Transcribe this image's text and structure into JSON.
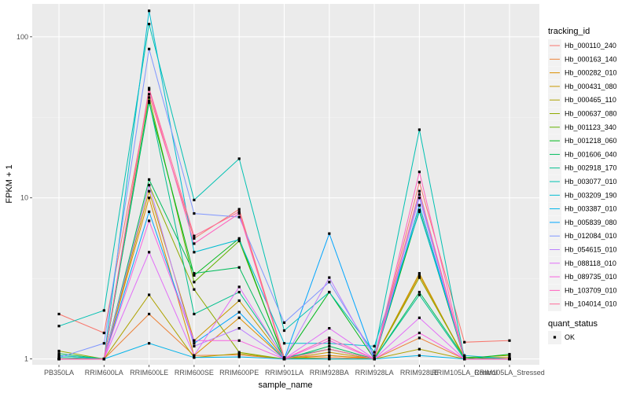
{
  "chart_data": {
    "type": "line",
    "xlabel": "sample_name",
    "ylabel": "FPKM + 1",
    "y_scale": "log10",
    "ylim": [
      0.92,
      160
    ],
    "y_ticks": [
      {
        "value": 1,
        "label": "1"
      },
      {
        "value": 10,
        "label": "10"
      },
      {
        "value": 100,
        "label": "100"
      }
    ],
    "categories": [
      "PB350LA",
      "RRIM600LA",
      "RRIM600LE",
      "RRIM600SE",
      "RRIM600PE",
      "RRIM901LA",
      "RRIM928BA",
      "RRIM928LA",
      "RRIM928LE",
      "RRIM105LA_Control",
      "RRIM105LA_Stressed"
    ],
    "legend": {
      "title": "tracking_id",
      "position": "right",
      "shape_title": "quant_status",
      "shape_items": [
        "OK"
      ]
    },
    "point_color": "#000000",
    "series": [
      {
        "name": "Hb_000110_240",
        "color": "#F8766D",
        "values": [
          1.9,
          1.45,
          44,
          5.6,
          8.5,
          1.02,
          1.05,
          1.01,
          12.5,
          1.27,
          1.3
        ]
      },
      {
        "name": "Hb_000163_140",
        "color": "#EC8239",
        "values": [
          1.0,
          1.0,
          1.9,
          1.05,
          1.06,
          1.0,
          1.02,
          1.0,
          1.35,
          1.0,
          1.0
        ]
      },
      {
        "name": "Hb_000282_010",
        "color": "#DB8E00",
        "values": [
          1.05,
          1.0,
          10,
          1.05,
          1.8,
          1.0,
          1.05,
          1.0,
          3.3,
          1.02,
          1.02
        ]
      },
      {
        "name": "Hb_000431_080",
        "color": "#C79800",
        "values": [
          1.0,
          1.0,
          11,
          1.3,
          2.3,
          1.0,
          1.1,
          1.0,
          3.4,
          1.0,
          1.0
        ]
      },
      {
        "name": "Hb_000465_110",
        "color": "#AEA200",
        "values": [
          1.0,
          1.0,
          2.5,
          1.02,
          1.08,
          1.0,
          1.0,
          1.0,
          1.15,
          1.0,
          1.0
        ]
      },
      {
        "name": "Hb_000637_080",
        "color": "#8FAA00",
        "values": [
          1.12,
          1.0,
          12,
          2.7,
          1.1,
          1.0,
          1.15,
          1.0,
          3.2,
          1.02,
          1.05
        ]
      },
      {
        "name": "Hb_001123_340",
        "color": "#64B200",
        "values": [
          1.0,
          1.0,
          42,
          3.0,
          5.4,
          1.02,
          1.0,
          1.0,
          9.0,
          1.0,
          1.0
        ]
      },
      {
        "name": "Hb_001218_060",
        "color": "#00B81B",
        "values": [
          1.0,
          1.0,
          39,
          3.3,
          5.6,
          1.0,
          2.6,
          1.0,
          8.4,
          1.0,
          1.07
        ]
      },
      {
        "name": "Hb_001606_040",
        "color": "#00BD5C",
        "values": [
          1.08,
          1.0,
          13,
          3.4,
          3.7,
          1.0,
          1.2,
          1.0,
          2.6,
          1.02,
          1.0
        ]
      },
      {
        "name": "Hb_002918_170",
        "color": "#00C08E",
        "values": [
          1.02,
          1.0,
          40,
          1.9,
          2.6,
          1.02,
          1.15,
          1.0,
          2.5,
          1.0,
          1.0
        ]
      },
      {
        "name": "Hb_003077_010",
        "color": "#00C1B2",
        "values": [
          1.6,
          2.0,
          120,
          9.7,
          17.5,
          1.5,
          2.6,
          1.1,
          26.5,
          1.0,
          1.0
        ]
      },
      {
        "name": "Hb_003209_190",
        "color": "#00BCD1",
        "values": [
          1.05,
          1.0,
          145,
          4.6,
          5.5,
          1.25,
          1.25,
          1.2,
          8.2,
          1.05,
          1.0
        ]
      },
      {
        "name": "Hb_003387_010",
        "color": "#00B3EA",
        "values": [
          1.0,
          1.0,
          1.25,
          1.02,
          1.03,
          1.0,
          1.0,
          1.0,
          1.05,
          1.0,
          1.0
        ]
      },
      {
        "name": "Hb_005839_080",
        "color": "#00A5FE",
        "values": [
          1.0,
          1.0,
          8.2,
          1.25,
          1.95,
          1.0,
          6.0,
          1.0,
          9.0,
          1.0,
          1.0
        ]
      },
      {
        "name": "Hb_012084_010",
        "color": "#7F96FF",
        "values": [
          1.02,
          1.25,
          84,
          8.0,
          7.6,
          1.68,
          3.0,
          1.05,
          10.5,
          1.0,
          1.0
        ]
      },
      {
        "name": "Hb_054615_010",
        "color": "#BC81FF",
        "values": [
          1.0,
          1.0,
          12,
          1.2,
          1.55,
          1.0,
          3.2,
          1.0,
          10.0,
          1.0,
          1.0
        ]
      },
      {
        "name": "Hb_088118_010",
        "color": "#E26EF7",
        "values": [
          1.0,
          1.0,
          4.6,
          1.05,
          2.8,
          1.0,
          1.55,
          1.0,
          1.8,
          1.0,
          1.0
        ]
      },
      {
        "name": "Hb_089735_010",
        "color": "#F763E0",
        "values": [
          1.0,
          1.0,
          7.2,
          1.3,
          1.3,
          1.0,
          1.3,
          1.0,
          1.45,
          1.0,
          1.0
        ]
      },
      {
        "name": "Hb_103709_010",
        "color": "#FF62BF",
        "values": [
          1.0,
          1.0,
          47,
          5.2,
          8.0,
          1.0,
          1.35,
          1.0,
          14.5,
          1.0,
          1.0
        ]
      },
      {
        "name": "Hb_104014_010",
        "color": "#FF6A98",
        "values": [
          1.0,
          1.0,
          48,
          5.8,
          8.2,
          1.0,
          1.15,
          1.0,
          11.0,
          1.0,
          1.0
        ]
      }
    ]
  }
}
